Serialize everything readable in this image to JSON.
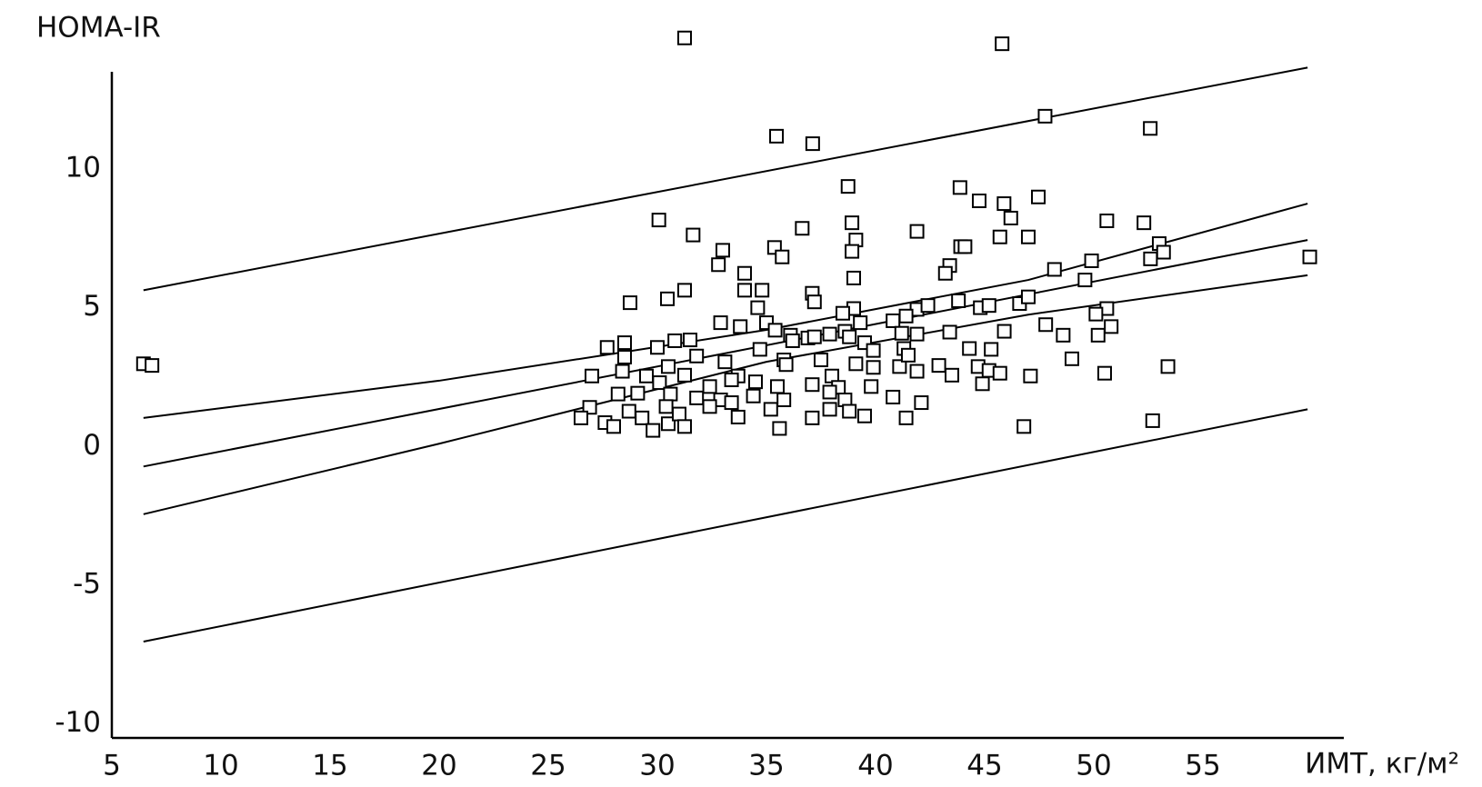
{
  "chart_data": {
    "type": "scatter",
    "ylabel": "HOMA-IR",
    "xlabel": "ИМТ, кг/м²",
    "xlim": [
      5,
      61.46
    ],
    "ylim": [
      -10.5,
      13.5
    ],
    "xticks": [
      5,
      10,
      15,
      20,
      25,
      30,
      35,
      40,
      45,
      50,
      55
    ],
    "yticks": [
      -10,
      -5,
      0,
      5,
      10
    ],
    "grid": false,
    "color": "#000000",
    "marker": "square",
    "points": {
      "x": [
        6.45,
        6.84,
        31.25,
        45.8,
        35.46,
        37.12,
        47.77,
        52.59,
        38.74,
        43.87,
        44.75,
        45.89,
        46.2,
        47.46,
        30.07,
        31.64,
        33.0,
        36.64,
        35.37,
        35.72,
        38.92,
        39.1,
        38.92,
        41.9,
        43.9,
        44.1,
        45.7,
        47.0,
        50.6,
        52.3,
        53.0,
        53.2,
        52.6,
        49.9,
        59.9,
        48.2,
        49.6,
        32.8,
        34.0,
        43.4,
        43.2,
        39.0,
        28.75,
        30.46,
        31.25,
        34.0,
        34.8,
        37.1,
        37.2,
        34.6,
        43.8,
        44.8,
        45.2,
        46.6,
        47.0,
        50.6,
        50.1,
        50.8,
        50.2,
        41.9,
        42.4,
        39.0,
        38.5,
        40.8,
        41.4,
        32.9,
        33.8,
        35.0,
        35.4,
        36.1,
        36.9,
        37.9,
        38.6,
        39.3,
        41.2,
        41.9,
        43.4,
        45.9,
        47.8,
        48.6,
        27.7,
        28.5,
        30.0,
        30.8,
        31.5,
        34.7,
        36.2,
        37.2,
        38.8,
        39.5,
        39.9,
        41.3,
        44.3,
        45.3,
        27.0,
        28.4,
        28.5,
        30.5,
        31.8,
        33.1,
        33.7,
        35.8,
        35.9,
        37.5,
        38.0,
        39.1,
        39.9,
        41.1,
        41.5,
        41.9,
        42.9,
        43.5,
        44.7,
        45.2,
        45.7,
        47.1,
        49.0,
        50.5,
        53.4,
        29.5,
        30.1,
        31.25,
        32.4,
        33.4,
        34.5,
        35.5,
        37.1,
        38.3,
        39.8,
        44.9,
        28.2,
        29.1,
        30.6,
        31.8,
        32.9,
        34.4,
        35.8,
        37.9,
        38.6,
        40.8,
        42.1,
        26.9,
        28.7,
        30.4,
        32.4,
        33.4,
        35.2,
        37.9,
        38.8,
        26.5,
        27.6,
        28.0,
        29.3,
        29.8,
        30.5,
        31.0,
        31.25,
        33.7,
        35.6,
        37.1,
        39.5,
        41.4,
        46.8,
        52.7
      ],
      "y": [
        2.98,
        2.92,
        14.72,
        14.51,
        11.18,
        10.91,
        11.9,
        11.46,
        9.37,
        9.33,
        8.85,
        8.75,
        8.23,
        8.99,
        8.16,
        7.62,
        7.07,
        7.86,
        7.17,
        6.83,
        8.06,
        7.44,
        7.03,
        7.75,
        7.2,
        7.2,
        7.55,
        7.55,
        8.13,
        8.06,
        7.31,
        7.0,
        6.76,
        6.69,
        6.83,
        6.38,
        6.0,
        6.55,
        6.24,
        6.52,
        6.24,
        6.07,
        5.18,
        5.32,
        5.63,
        5.63,
        5.63,
        5.52,
        5.21,
        5.0,
        5.25,
        5.0,
        5.08,
        5.15,
        5.39,
        4.97,
        4.77,
        4.32,
        4.01,
        4.94,
        5.08,
        4.97,
        4.8,
        4.53,
        4.7,
        4.46,
        4.32,
        4.46,
        4.19,
        4.01,
        3.91,
        4.05,
        4.15,
        4.46,
        4.08,
        4.05,
        4.12,
        4.15,
        4.39,
        4.01,
        3.57,
        3.74,
        3.57,
        3.81,
        3.84,
        3.5,
        3.81,
        3.95,
        3.95,
        3.74,
        3.46,
        3.53,
        3.53,
        3.5,
        2.54,
        2.71,
        3.22,
        2.88,
        3.26,
        3.05,
        2.54,
        3.12,
        2.95,
        3.12,
        2.54,
        2.98,
        2.85,
        2.88,
        3.29,
        2.71,
        2.92,
        2.57,
        2.88,
        2.74,
        2.64,
        2.54,
        3.16,
        2.64,
        2.88,
        2.54,
        2.3,
        2.57,
        2.16,
        2.4,
        2.33,
        2.16,
        2.23,
        2.13,
        2.16,
        2.26,
        1.89,
        1.92,
        1.89,
        1.75,
        1.68,
        1.82,
        1.68,
        1.96,
        1.68,
        1.78,
        1.58,
        1.41,
        1.27,
        1.44,
        1.44,
        1.58,
        1.34,
        1.34,
        1.27,
        1.03,
        0.86,
        0.72,
        1.03,
        0.58,
        0.82,
        1.17,
        0.72,
        1.06,
        0.65,
        1.03,
        1.1,
        1.03,
        0.72,
        0.93
      ]
    },
    "lines": [
      {
        "x": [
          6.45,
          59.8
        ],
        "y": [
          5.63,
          13.65
        ]
      },
      {
        "x": [
          6.45,
          20,
          35,
          47,
          59.8
        ],
        "y": [
          1.03,
          2.37,
          4.2,
          6.0,
          8.75
        ]
      },
      {
        "x": [
          6.45,
          59.8
        ],
        "y": [
          -0.72,
          7.44
        ]
      },
      {
        "x": [
          6.45,
          20,
          35,
          47,
          59.8
        ],
        "y": [
          -2.44,
          0.1,
          3.05,
          4.75,
          6.17
        ]
      },
      {
        "x": [
          6.45,
          59.8
        ],
        "y": [
          -7.03,
          1.34
        ]
      }
    ]
  }
}
